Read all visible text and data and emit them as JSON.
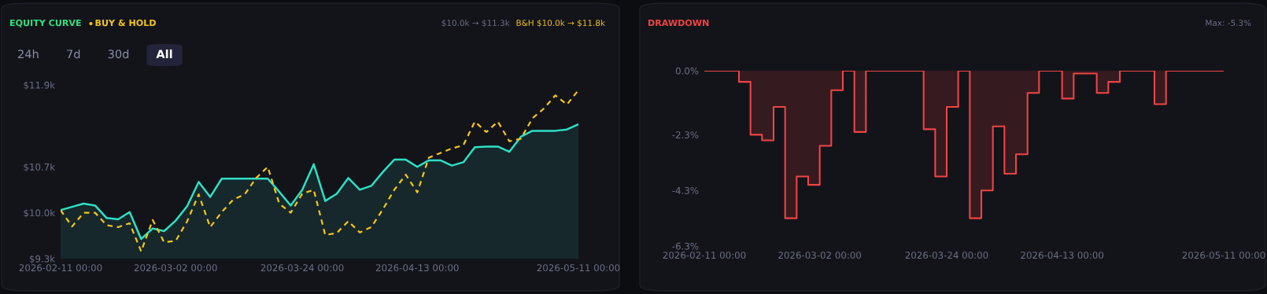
{
  "chart_data": [
    {
      "type": "line",
      "title": "EQUITY CURVE",
      "legend": "top left",
      "categories": [
        "2026-02-11 00:00",
        null,
        null,
        null,
        null,
        null,
        null,
        null,
        null,
        null,
        "2026-03-02 00:00",
        null,
        null,
        null,
        null,
        null,
        null,
        null,
        null,
        null,
        null,
        "2026-03-24 00:00",
        null,
        null,
        null,
        null,
        null,
        null,
        null,
        null,
        null,
        "2026-04-13 00:00",
        null,
        null,
        null,
        null,
        null,
        null,
        null,
        null,
        null,
        null,
        null,
        null,
        null,
        "2026-05-11 00:00"
      ],
      "series": [
        {
          "type": "area",
          "color": "#2de0c5",
          "values": [
            10.04,
            10.09,
            10.14,
            10.11,
            9.92,
            9.9,
            10.01,
            9.6,
            9.76,
            9.72,
            9.88,
            10.1,
            10.47,
            10.24,
            10.52,
            10.52,
            10.52,
            10.52,
            10.52,
            10.32,
            10.11,
            10.35,
            10.74,
            10.18,
            10.29,
            10.53,
            10.35,
            10.41,
            10.62,
            10.81,
            10.81,
            10.7,
            10.8,
            10.8,
            10.72,
            10.77,
            11.0,
            11.01,
            11.01,
            10.93,
            11.16,
            11.25,
            11.25,
            11.25,
            11.27,
            11.35
          ]
        },
        {
          "name": "BUY & HOLD",
          "type": "line",
          "line_style": "dashed",
          "color": "#f5c518",
          "values": [
            10.04,
            9.79,
            10.0,
            10.0,
            9.81,
            9.78,
            9.84,
            9.41,
            9.89,
            9.55,
            9.57,
            9.87,
            10.28,
            9.78,
            10.01,
            10.2,
            10.28,
            10.53,
            10.7,
            10.14,
            10.0,
            10.29,
            10.35,
            9.66,
            9.69,
            9.87,
            9.7,
            9.78,
            10.05,
            10.35,
            10.58,
            10.31,
            10.84,
            10.91,
            10.98,
            11.03,
            11.39,
            11.23,
            11.39,
            11.09,
            11.13,
            11.44,
            11.59,
            11.79,
            11.65,
            11.87
          ]
        }
      ],
      "ylim": [
        9.3,
        11.95
      ],
      "yticks": [
        {
          "value": 9.3,
          "label": "$9.3k"
        },
        {
          "value": 10.0,
          "label": "$10.0k"
        },
        {
          "value": 10.7,
          "label": "$10.7k"
        },
        {
          "value": 11.95,
          "label": "$11.9k"
        }
      ],
      "annotations": [
        "$10.0k → $11.3k",
        "B&H $10.0k → $11.8k",
        "24h",
        "7d",
        "30d",
        "All"
      ]
    },
    {
      "type": "step",
      "title": "DRAWDOWN",
      "categories": [
        "2026-02-11 00:00",
        null,
        null,
        null,
        null,
        null,
        null,
        null,
        null,
        null,
        "2026-03-02 00:00",
        null,
        null,
        null,
        null,
        null,
        null,
        null,
        null,
        null,
        null,
        "2026-03-24 00:00",
        null,
        null,
        null,
        null,
        null,
        null,
        null,
        null,
        null,
        "2026-04-13 00:00",
        null,
        null,
        null,
        null,
        null,
        null,
        null,
        null,
        null,
        null,
        null,
        null,
        null,
        "2026-05-11 00:00"
      ],
      "series": [
        {
          "color": "#ef4444",
          "values": [
            0,
            0,
            0,
            -0.4,
            -2.3,
            -2.5,
            -1.3,
            -5.3,
            -3.8,
            -4.1,
            -2.7,
            -0.7,
            0,
            -2.2,
            0,
            0,
            0,
            0,
            0,
            -2.1,
            -3.8,
            -1.3,
            0,
            -5.3,
            -4.3,
            -2.0,
            -3.7,
            -3.0,
            -0.8,
            0,
            0,
            -1.0,
            -0.1,
            -0.1,
            -0.8,
            -0.4,
            0,
            0,
            0,
            -1.2,
            0,
            0,
            0,
            0,
            0,
            0
          ]
        }
      ],
      "ylim": [
        -6.3,
        0
      ],
      "yticks": [
        {
          "value": -6.3,
          "label": "-6.3%"
        },
        {
          "value": -4.3,
          "label": "-4.3%"
        },
        {
          "value": -2.3,
          "label": "-2.3%"
        },
        {
          "value": 0,
          "label": "0.0%"
        }
      ],
      "annotations": [
        "Max: -5.3%"
      ]
    }
  ]
}
